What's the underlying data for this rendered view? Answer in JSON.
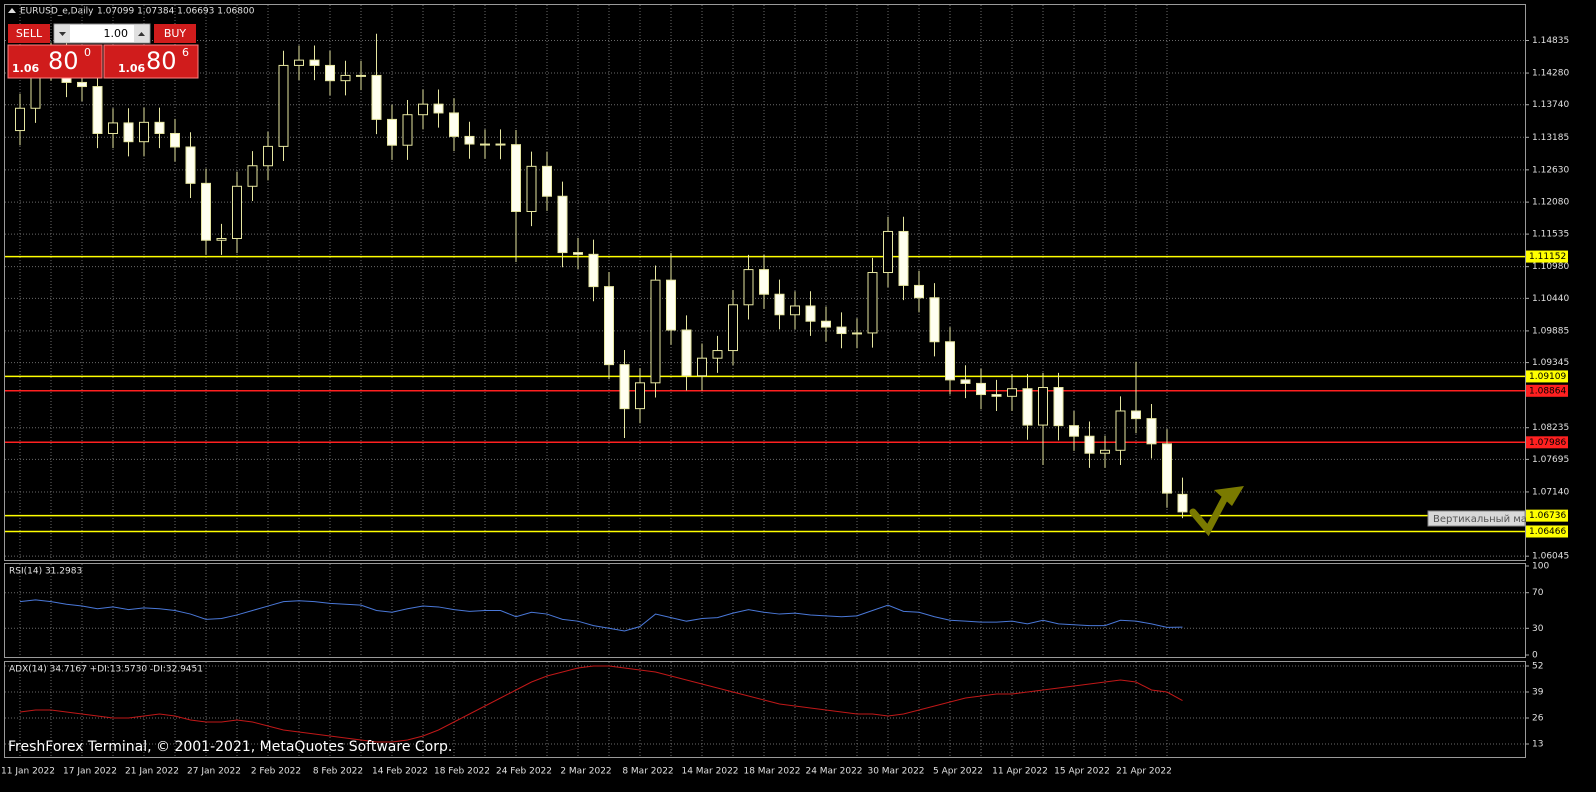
{
  "header": {
    "symbol": "EURUSD_e,Daily",
    "ohlc": "1.07099 1.07384 1.06693 1.06800"
  },
  "trade_panel": {
    "sell": "SELL",
    "buy": "BUY",
    "lot": "1.00",
    "sell_price": {
      "big_figure": "1.06",
      "pips": "80",
      "fraction": "0"
    },
    "buy_price": {
      "big_figure": "1.06",
      "pips": "80",
      "fraction": "6"
    }
  },
  "tooltip": "Вертикальный ма",
  "footer": "FreshForex Terminal, © 2001-2021, MetaQuotes Software Corp.",
  "chart_data": {
    "type": "candlestick",
    "categories": [
      "11 Jan 2022",
      null,
      null,
      null,
      "17 Jan 2022",
      null,
      null,
      null,
      "21 Jan 2022",
      null,
      null,
      null,
      "27 Jan 2022",
      null,
      null,
      null,
      "2 Feb 2022",
      null,
      null,
      null,
      "8 Feb 2022",
      null,
      null,
      null,
      "14 Feb 2022",
      null,
      null,
      null,
      "18 Feb 2022",
      null,
      null,
      null,
      "24 Feb 2022",
      null,
      null,
      null,
      "2 Mar 2022",
      null,
      null,
      null,
      "8 Mar 2022",
      null,
      null,
      null,
      "14 Mar 2022",
      null,
      null,
      null,
      "18 Mar 2022",
      null,
      null,
      null,
      "24 Mar 2022",
      null,
      null,
      null,
      "30 Mar 2022",
      null,
      null,
      null,
      "5 Apr 2022",
      null,
      null,
      null,
      "11 Apr 2022",
      null,
      null,
      null,
      "15 Apr 2022",
      null,
      null,
      null,
      "21 Apr 2022",
      null,
      null,
      null
    ],
    "open": [
      1.133,
      1.1368,
      1.144,
      1.1455,
      1.1412,
      1.1405,
      1.1325,
      1.1343,
      1.1311,
      1.1344,
      1.1325,
      1.1302,
      1.124,
      1.1143,
      1.1146,
      1.1235,
      1.127,
      1.1303,
      1.1441,
      1.145,
      1.1441,
      1.1415,
      1.1424,
      1.1424,
      1.1349,
      1.1305,
      1.1357,
      1.1375,
      1.136,
      1.132,
      1.1307,
      1.1307,
      1.1306,
      1.1192,
      1.1269,
      1.1218,
      1.1122,
      1.1119,
      1.1064,
      1.0931,
      1.0856,
      1.09,
      1.1075,
      1.099,
      1.0912,
      1.0942,
      1.0955,
      1.1033,
      1.1093,
      1.1051,
      1.1016,
      1.1031,
      1.1005,
      1.0995,
      1.0984,
      1.0985,
      1.1088,
      1.1158,
      1.1066,
      1.1045,
      1.097,
      1.0905,
      1.0899,
      1.088,
      1.0877,
      1.089,
      1.0828,
      1.0892,
      1.0827,
      1.0809,
      1.078,
      1.0785,
      1.0852,
      1.0839,
      1.0796,
      1.07099
    ],
    "high": [
      1.1393,
      1.1465,
      1.148,
      1.148,
      1.1437,
      1.143,
      1.1368,
      1.1368,
      1.1369,
      1.1369,
      1.135,
      1.1327,
      1.1265,
      1.1171,
      1.126,
      1.1295,
      1.1328,
      1.1466,
      1.1475,
      1.1475,
      1.1466,
      1.1449,
      1.1449,
      1.1495,
      1.1374,
      1.1382,
      1.14,
      1.14,
      1.1385,
      1.1345,
      1.1332,
      1.1332,
      1.1331,
      1.1294,
      1.1294,
      1.1243,
      1.1147,
      1.1144,
      1.1089,
      1.0956,
      1.0925,
      1.11,
      1.1121,
      1.1015,
      1.0967,
      1.098,
      1.1058,
      1.1118,
      1.1118,
      1.1076,
      1.1056,
      1.1056,
      1.103,
      1.102,
      1.101,
      1.1113,
      1.1183,
      1.1183,
      1.1091,
      1.107,
      1.0995,
      1.093,
      1.0924,
      1.0905,
      1.0915,
      1.0915,
      1.0917,
      1.0917,
      1.0852,
      1.0834,
      1.081,
      1.0877,
      1.0936,
      1.0864,
      1.0821,
      1.07384
    ],
    "low": [
      1.1305,
      1.1343,
      1.1415,
      1.1387,
      1.138,
      1.13,
      1.13,
      1.1286,
      1.1286,
      1.13,
      1.1277,
      1.1215,
      1.1118,
      1.1118,
      1.1121,
      1.121,
      1.1245,
      1.1278,
      1.1416,
      1.1416,
      1.139,
      1.139,
      1.1399,
      1.1324,
      1.128,
      1.128,
      1.1332,
      1.1335,
      1.1295,
      1.1282,
      1.1282,
      1.1281,
      1.1106,
      1.1167,
      1.1193,
      1.1097,
      1.1094,
      1.1039,
      1.0906,
      1.0806,
      1.0831,
      1.0875,
      1.0965,
      1.0887,
      1.0887,
      1.0917,
      1.093,
      1.1008,
      1.1026,
      1.0991,
      1.0991,
      1.098,
      1.097,
      1.0959,
      1.0959,
      1.096,
      1.1063,
      1.1041,
      1.102,
      1.0945,
      1.088,
      1.0874,
      1.0855,
      1.0852,
      1.0852,
      1.0803,
      1.076,
      1.0802,
      1.0784,
      1.0755,
      1.0755,
      1.076,
      1.0814,
      1.0771,
      1.0687,
      1.06693
    ],
    "close": [
      1.1368,
      1.144,
      1.1455,
      1.1412,
      1.1405,
      1.1325,
      1.1343,
      1.1311,
      1.1344,
      1.1325,
      1.1302,
      1.124,
      1.1143,
      1.1146,
      1.1235,
      1.127,
      1.1303,
      1.1441,
      1.145,
      1.1441,
      1.1415,
      1.1424,
      1.1424,
      1.1349,
      1.1305,
      1.1357,
      1.1375,
      1.136,
      1.132,
      1.1307,
      1.1307,
      1.1306,
      1.1192,
      1.1269,
      1.1218,
      1.1122,
      1.1119,
      1.1064,
      1.0931,
      1.0856,
      1.09,
      1.1075,
      1.099,
      1.0912,
      1.0942,
      1.0955,
      1.1033,
      1.1093,
      1.1051,
      1.1016,
      1.1031,
      1.1005,
      1.0995,
      1.0984,
      1.0985,
      1.1088,
      1.1158,
      1.1066,
      1.1045,
      1.097,
      1.0905,
      1.0899,
      1.088,
      1.0877,
      1.089,
      1.0828,
      1.0892,
      1.0827,
      1.0809,
      1.078,
      1.0785,
      1.0852,
      1.0839,
      1.0796,
      1.0712,
      1.068
    ],
    "bull_color": "#000000",
    "bear_color": "#fffff0",
    "wick_color": "#e6e6a0",
    "ylim": [
      1.0598,
      1.1544
    ],
    "yticks": [
      1.14835,
      {
        "value": 1.1428,
        "label": "1.14280"
      },
      {
        "value": 1.1374,
        "label": "1.13740"
      },
      1.13185,
      {
        "value": 1.1263,
        "label": "1.12630"
      },
      {
        "value": 1.1208,
        "label": "1.12080"
      },
      1.11535,
      {
        "value": 1.1098,
        "label": "1.10980"
      },
      {
        "value": 1.1044,
        "label": "1.10440"
      },
      1.09885,
      1.09345,
      1.08235,
      1.07695,
      {
        "value": 1.0714,
        "label": "1.07140"
      },
      1.06045
    ],
    "grid": true,
    "lines": [
      {
        "value": 1.11152,
        "color": "#ffff00"
      },
      {
        "value": 1.09109,
        "color": "#ffff00"
      },
      {
        "value": 1.08864,
        "color": "#ff2020"
      },
      {
        "value": 1.07986,
        "color": "#ff2020"
      },
      {
        "value": 1.06736,
        "color": "#ffff00"
      },
      {
        "value": 1.06466,
        "color": "#ffff00"
      }
    ],
    "rsi": {
      "title": "RSI(14) 31.2983",
      "color": "#4a78d8",
      "ylim": [
        0,
        100
      ],
      "yticks": [
        100,
        70,
        30,
        0
      ],
      "values": [
        60,
        62,
        60,
        57,
        55,
        52,
        54,
        51,
        53,
        52,
        50,
        46,
        40,
        41,
        45,
        50,
        55,
        60,
        61,
        60,
        58,
        57,
        56,
        50,
        48,
        52,
        55,
        54,
        51,
        49,
        50,
        50,
        43,
        48,
        46,
        40,
        38,
        33,
        30,
        27,
        32,
        46,
        42,
        38,
        41,
        42,
        47,
        51,
        48,
        46,
        47,
        45,
        44,
        43,
        44,
        50,
        56,
        49,
        48,
        43,
        39,
        38,
        37,
        37,
        38,
        35,
        39,
        35,
        34,
        33,
        33,
        39,
        38,
        35,
        31,
        31.2983
      ]
    },
    "adx": {
      "title": "ADX(14) 34.7167 +DI:13.5730 -DI:32.9451",
      "color": "#c01818",
      "ylim": [
        6.5,
        54.5
      ],
      "yticks": [
        52,
        39,
        26,
        13
      ],
      "values": [
        29,
        30,
        30,
        29,
        28,
        27,
        26,
        26,
        27,
        28,
        27,
        25,
        24,
        24,
        25,
        24,
        22,
        20,
        19,
        18,
        17,
        16,
        15,
        14,
        14,
        15,
        17,
        20,
        24,
        28,
        32,
        36,
        40,
        44,
        47,
        49,
        51,
        52,
        52,
        51,
        50,
        49,
        47,
        45,
        43,
        41,
        39,
        37,
        35,
        33,
        32,
        31,
        30,
        29,
        28,
        28,
        27,
        28,
        30,
        32,
        34,
        36,
        37,
        38,
        38,
        39,
        40,
        41,
        42,
        43,
        44,
        45,
        44,
        40,
        39,
        34.7167
      ]
    }
  }
}
